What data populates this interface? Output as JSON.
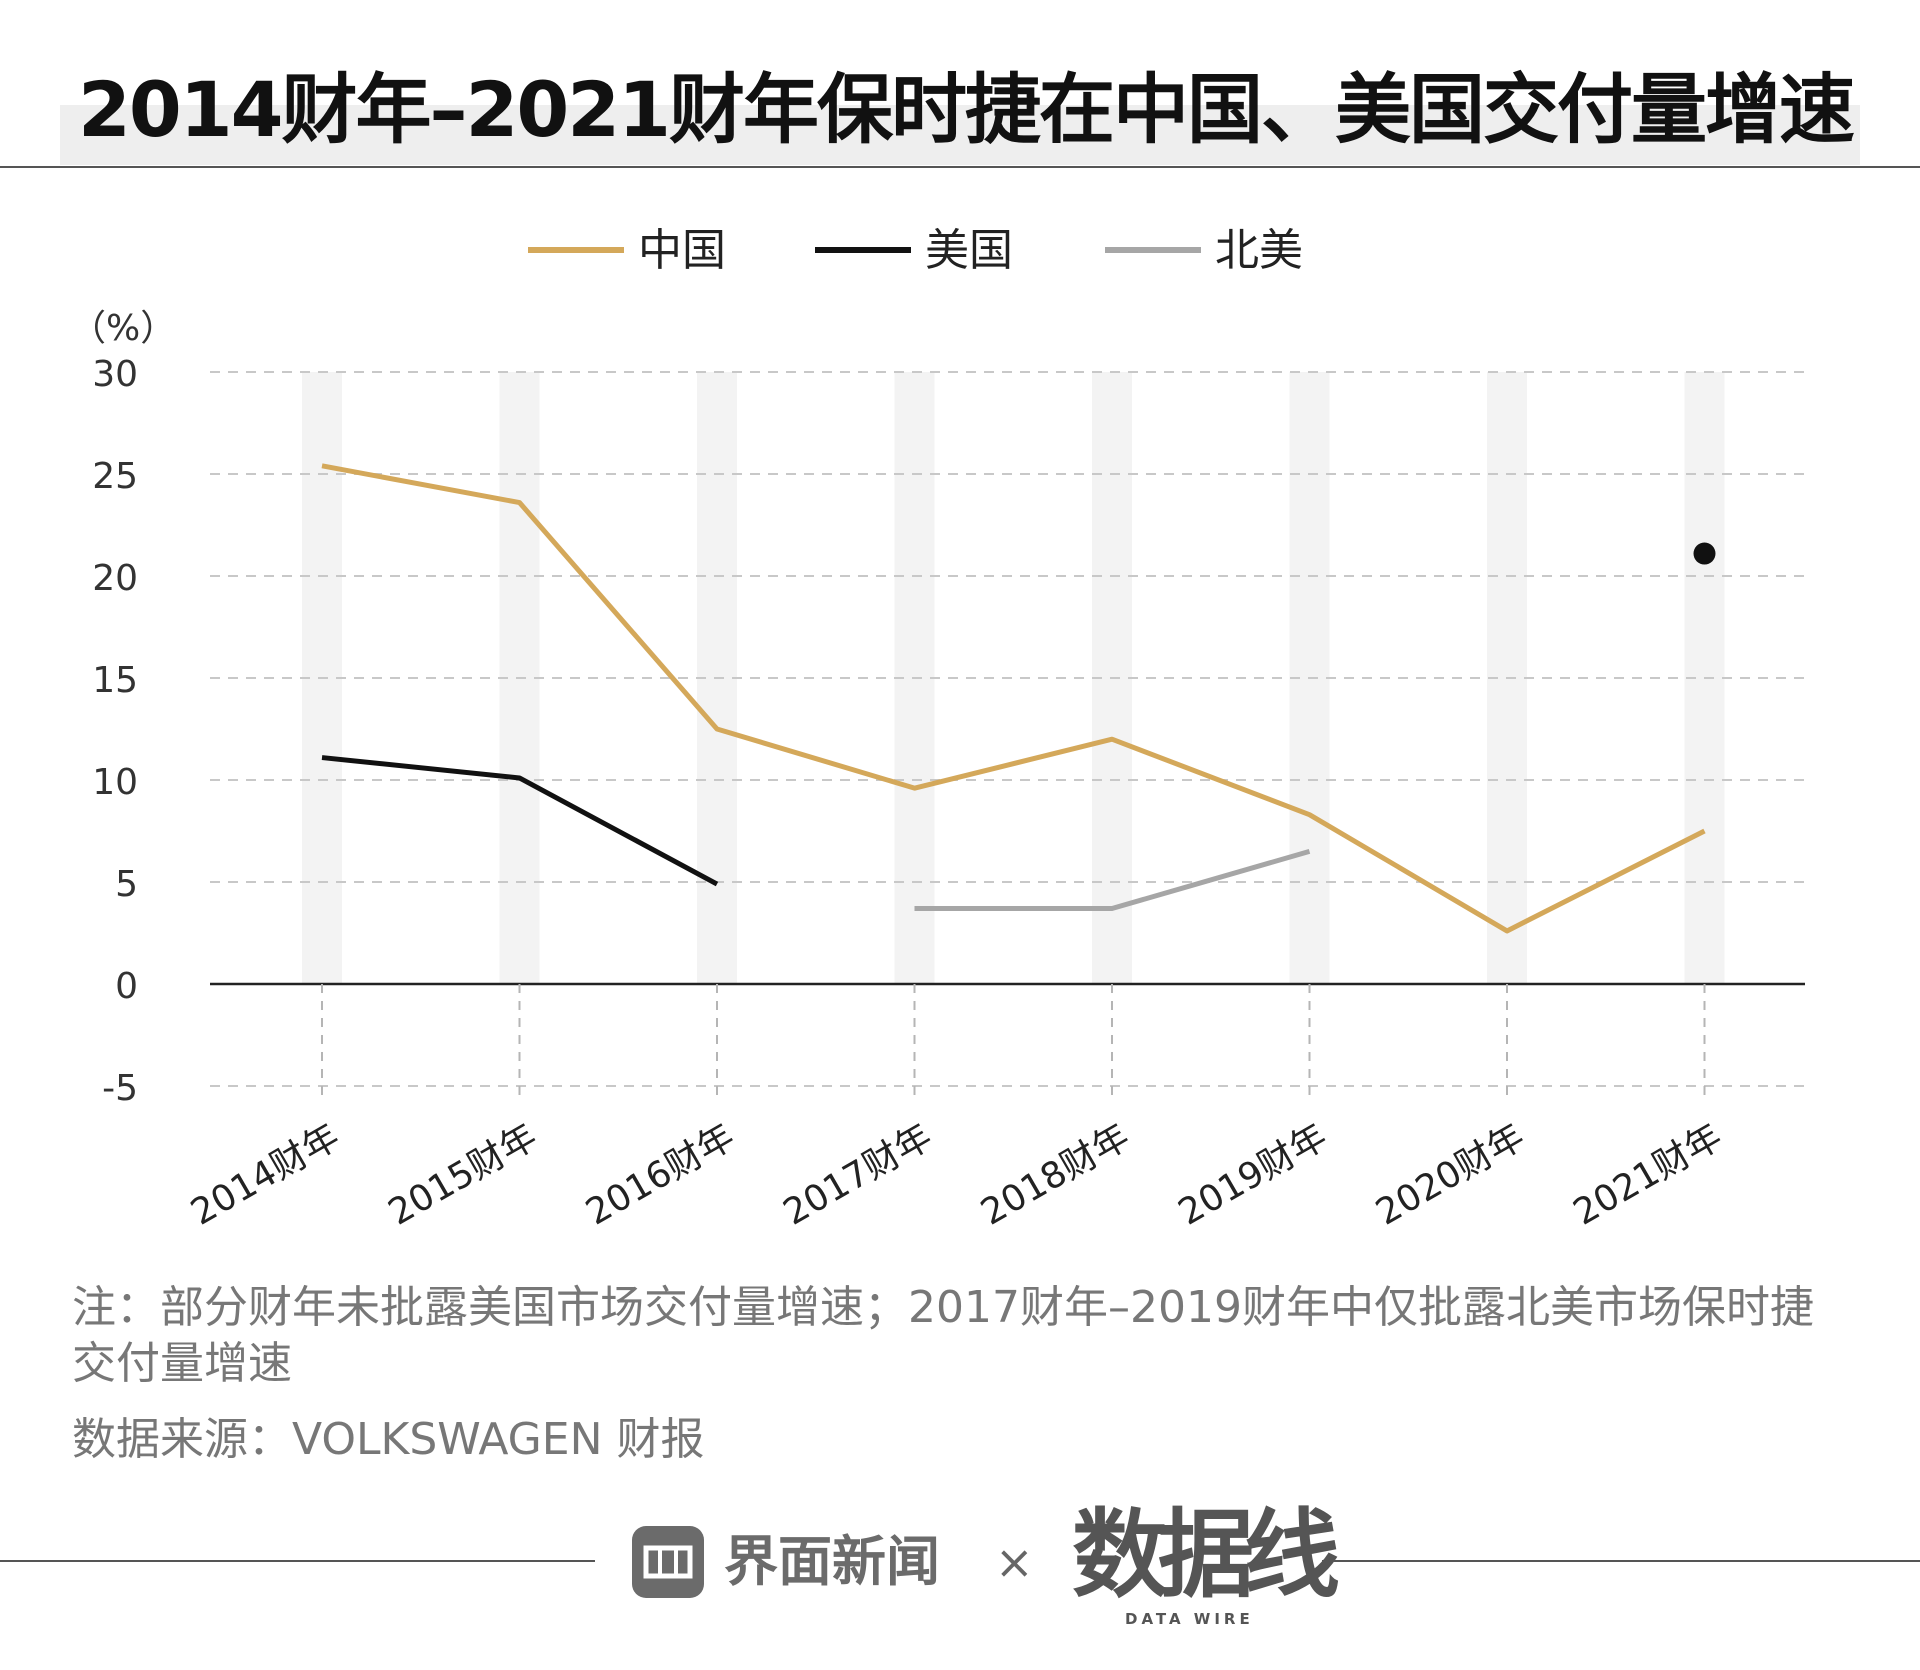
{
  "title": "2014财年–2021财年保时捷在中国、美国交付量增速",
  "colors": {
    "china": "#d4a85a",
    "usa": "#111111",
    "north_america": "#a6a6a6",
    "band": "#f3f3f3",
    "grid": "#c8c8c8"
  },
  "watermark_text": "数据线",
  "chart_data": {
    "type": "line",
    "unit_label": "（%）",
    "categories": [
      "2014财年",
      "2015财年",
      "2016财年",
      "2017财年",
      "2018财年",
      "2019财年",
      "2020财年",
      "2021财年"
    ],
    "ylim": [
      -5,
      30
    ],
    "yticks": [
      "30",
      "25",
      "20",
      "15",
      "10",
      "5",
      "0",
      "-5"
    ],
    "ytick_values": [
      30,
      25,
      20,
      15,
      10,
      5,
      0,
      -5
    ],
    "legend_position": "top",
    "grid": true,
    "series": [
      {
        "name": "中国",
        "color": "#d4a85a",
        "values": [
          25.4,
          23.6,
          12.5,
          9.6,
          12.0,
          8.3,
          2.6,
          7.5
        ]
      },
      {
        "name": "美国",
        "color": "#111111",
        "values": [
          11.1,
          10.1,
          4.9,
          null,
          null,
          null,
          null,
          21.1
        ]
      },
      {
        "name": "北美",
        "color": "#a6a6a6",
        "values": [
          null,
          null,
          null,
          3.7,
          3.7,
          6.5,
          null,
          null
        ]
      }
    ]
  },
  "note": "注：部分财年未批露美国市场交付量增速；2017财年–2019财年中仅批露北美市场保时捷交付量增速",
  "source": "数据来源：VOLKSWAGEN 财报",
  "footer": {
    "logo_text": "界面新闻",
    "times": "×",
    "brand": "数据线",
    "brand_sub": "DATA WIRE"
  }
}
